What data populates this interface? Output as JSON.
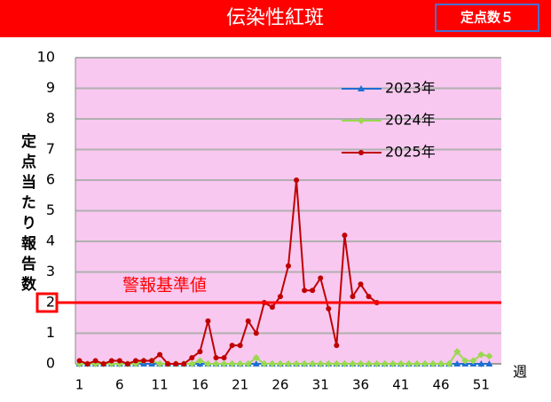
{
  "chart_data": {
    "type": "line",
    "title": "伝染性紅斑",
    "subtitle": "定点数５",
    "ylabel": "定点当たり報告数",
    "xlabel": "週",
    "x": [
      1,
      2,
      3,
      4,
      5,
      6,
      7,
      8,
      9,
      10,
      11,
      12,
      13,
      14,
      15,
      16,
      17,
      18,
      19,
      20,
      21,
      22,
      23,
      24,
      25,
      26,
      27,
      28,
      29,
      30,
      31,
      32,
      33,
      34,
      35,
      36,
      37,
      38,
      39,
      40,
      41,
      42,
      43,
      44,
      45,
      46,
      47,
      48,
      49,
      50,
      51,
      52
    ],
    "xlim": [
      0.5,
      53.5
    ],
    "xticks": [
      1,
      6,
      11,
      16,
      21,
      26,
      31,
      36,
      41,
      46,
      51
    ],
    "ylim": [
      0,
      10
    ],
    "yticks": [
      0,
      1,
      2,
      3,
      4,
      5,
      6,
      7,
      8,
      9,
      10
    ],
    "grid": true,
    "threshold": {
      "value": 2,
      "label": "警報基準値",
      "color": "#ff0000"
    },
    "series": [
      {
        "name": "2023年",
        "color": "#1f6fd0",
        "marker": "triangle",
        "values": [
          0,
          0,
          0,
          0,
          0,
          0,
          0,
          0,
          0,
          0,
          0,
          0,
          0,
          0,
          0,
          0,
          0,
          0,
          0,
          0,
          0,
          0,
          0,
          0,
          0,
          0,
          0,
          0,
          0,
          0,
          0,
          0,
          0,
          0,
          0,
          0,
          0,
          0,
          0,
          0,
          0,
          0,
          0,
          0,
          0,
          0,
          0,
          0,
          0,
          0,
          0,
          0
        ]
      },
      {
        "name": "2024年",
        "color": "#9ad850",
        "marker": "diamond",
        "values": [
          0,
          0,
          0,
          0,
          0,
          0,
          0,
          0,
          0.1,
          0.1,
          0,
          0,
          0,
          0,
          0,
          0.1,
          0,
          0,
          0,
          0,
          0,
          0,
          0.2,
          0,
          0,
          0,
          0,
          0,
          0,
          0,
          0,
          0,
          0,
          0,
          0,
          0,
          0,
          0,
          0,
          0,
          0,
          0,
          0,
          0,
          0,
          0,
          0,
          0.4,
          0.1,
          0.1,
          0.3,
          0.25
        ]
      },
      {
        "name": "2025年",
        "color": "#c00000",
        "marker": "circle",
        "values": [
          0.1,
          0,
          0.1,
          0,
          0.1,
          0.1,
          0,
          0.1,
          0.1,
          0.1,
          0.3,
          0,
          0,
          0,
          0.2,
          0.4,
          1.4,
          0.2,
          0.2,
          0.6,
          0.6,
          1.4,
          1,
          2,
          1.85,
          2.2,
          3.2,
          6,
          2.4,
          2.4,
          2.8,
          1.8,
          0.6,
          4.2,
          2.2,
          2.6,
          2.2,
          2,
          null,
          null,
          null,
          null,
          null,
          null,
          null,
          null,
          null,
          null,
          null,
          null,
          null,
          null
        ]
      }
    ]
  }
}
